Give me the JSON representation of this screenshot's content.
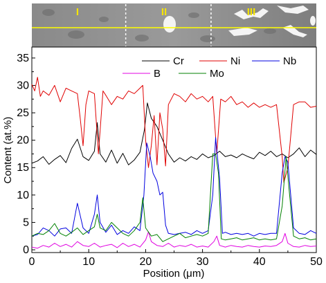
{
  "micrograph": {
    "description_free": true,
    "zone_labels": [
      "I",
      "II",
      "III"
    ],
    "zone_boundaries_um": [
      16.5,
      31.5
    ],
    "scan_line_color": "#ffff00"
  },
  "colors": {
    "Cr": "#000000",
    "Ni": "#e00000",
    "Nb": "#0000e0",
    "B": "#e000e0",
    "Mo": "#008000"
  },
  "chart_data": {
    "type": "line",
    "title": "",
    "xlabel": "Position (μm)",
    "ylabel": "Content (at.%)",
    "xlim": [
      0,
      50
    ],
    "ylim": [
      -0.5,
      37
    ],
    "xticks": [
      0,
      10,
      20,
      30,
      40,
      50
    ],
    "yticks": [
      0,
      5,
      10,
      15,
      20,
      25,
      30,
      35
    ],
    "grid": false,
    "legend": {
      "placement": "top-right",
      "entries": [
        "Cr",
        "Ni",
        "Nb",
        "B",
        "Mo"
      ]
    },
    "series": [
      {
        "name": "Cr",
        "color": "#000000",
        "points": [
          [
            0,
            15.8
          ],
          [
            1,
            16.2
          ],
          [
            2,
            17.0
          ],
          [
            3,
            15.6
          ],
          [
            4,
            16.5
          ],
          [
            5,
            17.2
          ],
          [
            6,
            15.9
          ],
          [
            7,
            18.5
          ],
          [
            8,
            20.2
          ],
          [
            9,
            17.0
          ],
          [
            10,
            16.3
          ],
          [
            11,
            18.0
          ],
          [
            11.5,
            23.2
          ],
          [
            12,
            17.5
          ],
          [
            13,
            16.0
          ],
          [
            14,
            18.2
          ],
          [
            15,
            15.8
          ],
          [
            16,
            17.6
          ],
          [
            17,
            15.5
          ],
          [
            18,
            16.4
          ],
          [
            19,
            17.8
          ],
          [
            19.8,
            22.0
          ],
          [
            20.3,
            26.8
          ],
          [
            21,
            24.0
          ],
          [
            22,
            22.5
          ],
          [
            23,
            20.0
          ],
          [
            24,
            17.5
          ],
          [
            25,
            16.0
          ],
          [
            26,
            16.8
          ],
          [
            27,
            16.2
          ],
          [
            28,
            17.0
          ],
          [
            29,
            16.5
          ],
          [
            30,
            17.5
          ],
          [
            31,
            16.8
          ],
          [
            32,
            17.2
          ],
          [
            33,
            18.0
          ],
          [
            34,
            17.0
          ],
          [
            35,
            17.3
          ],
          [
            36,
            16.8
          ],
          [
            37,
            17.5
          ],
          [
            38,
            17.0
          ],
          [
            39,
            16.6
          ],
          [
            40,
            17.8
          ],
          [
            41,
            17.2
          ],
          [
            42,
            18.0
          ],
          [
            43,
            17.0
          ],
          [
            44,
            17.5
          ],
          [
            45,
            16.8
          ],
          [
            46,
            17.5
          ],
          [
            47,
            18.6
          ],
          [
            48,
            17.0
          ],
          [
            49,
            18.2
          ],
          [
            50,
            17.4
          ]
        ]
      },
      {
        "name": "Ni",
        "color": "#e00000",
        "points": [
          [
            0,
            30.2
          ],
          [
            0.5,
            29.0
          ],
          [
            1,
            31.5
          ],
          [
            1.5,
            28.0
          ],
          [
            2,
            29.0
          ],
          [
            3,
            28.2
          ],
          [
            4,
            30.0
          ],
          [
            5,
            27.0
          ],
          [
            6,
            29.5
          ],
          [
            7,
            29.0
          ],
          [
            8,
            28.5
          ],
          [
            8.5,
            24.0
          ],
          [
            9,
            19.0
          ],
          [
            9.5,
            26.5
          ],
          [
            10,
            29.0
          ],
          [
            11,
            28.5
          ],
          [
            11.7,
            17.5
          ],
          [
            12.5,
            29.0
          ],
          [
            13,
            28.2
          ],
          [
            14,
            26.5
          ],
          [
            15,
            28.0
          ],
          [
            16,
            27.5
          ],
          [
            17,
            29.0
          ],
          [
            18,
            28.5
          ],
          [
            19,
            29.5
          ],
          [
            19.5,
            30.0
          ],
          [
            20,
            20.0
          ],
          [
            20.5,
            15.0
          ],
          [
            21,
            19.0
          ],
          [
            21.5,
            24.5
          ],
          [
            22,
            15.5
          ],
          [
            22.5,
            25.0
          ],
          [
            23,
            22.0
          ],
          [
            23.5,
            15.3
          ],
          [
            24,
            26.5
          ],
          [
            25,
            28.5
          ],
          [
            26,
            28.0
          ],
          [
            27,
            27.0
          ],
          [
            28,
            28.5
          ],
          [
            29,
            27.5
          ],
          [
            30,
            28.0
          ],
          [
            31,
            27.0
          ],
          [
            31.8,
            28.0
          ],
          [
            32.5,
            17.5
          ],
          [
            33.2,
            27.5
          ],
          [
            34,
            27.0
          ],
          [
            35,
            28.0
          ],
          [
            36,
            26.5
          ],
          [
            37,
            27.0
          ],
          [
            38,
            26.0
          ],
          [
            39,
            26.8
          ],
          [
            40,
            26.0
          ],
          [
            41,
            26.5
          ],
          [
            42,
            26.0
          ],
          [
            43,
            26.5
          ],
          [
            44,
            17.0
          ],
          [
            44.3,
            12.3
          ],
          [
            45,
            15.0
          ],
          [
            46,
            26.5
          ],
          [
            47,
            27.0
          ],
          [
            48,
            27.0
          ],
          [
            49,
            26.0
          ],
          [
            50,
            26.2
          ]
        ]
      },
      {
        "name": "Nb",
        "color": "#0000e0",
        "points": [
          [
            0,
            2.5
          ],
          [
            1,
            2.8
          ],
          [
            2,
            4.0
          ],
          [
            3,
            3.5
          ],
          [
            4,
            2.5
          ],
          [
            5,
            3.8
          ],
          [
            6,
            4.0
          ],
          [
            7,
            3.0
          ],
          [
            8,
            8.5
          ],
          [
            9,
            4.0
          ],
          [
            10,
            3.0
          ],
          [
            11,
            6.5
          ],
          [
            11.5,
            10.0
          ],
          [
            12,
            5.0
          ],
          [
            13,
            3.2
          ],
          [
            14,
            4.5
          ],
          [
            15,
            2.8
          ],
          [
            16,
            3.5
          ],
          [
            17,
            3.0
          ],
          [
            18,
            4.2
          ],
          [
            19,
            3.5
          ],
          [
            19.7,
            10.0
          ],
          [
            20.2,
            19.5
          ],
          [
            20.8,
            17.0
          ],
          [
            21.3,
            14.0
          ],
          [
            22,
            12.5
          ],
          [
            22.5,
            10.0
          ],
          [
            23,
            10.5
          ],
          [
            23.5,
            4.5
          ],
          [
            24,
            3.0
          ],
          [
            25,
            2.8
          ],
          [
            26,
            3.0
          ],
          [
            27,
            3.2
          ],
          [
            28,
            2.8
          ],
          [
            29,
            3.5
          ],
          [
            30,
            3.0
          ],
          [
            31,
            3.5
          ],
          [
            31.8,
            10.0
          ],
          [
            32.3,
            20.5
          ],
          [
            33,
            13.0
          ],
          [
            33.5,
            3.0
          ],
          [
            34,
            3.2
          ],
          [
            35,
            2.8
          ],
          [
            36,
            3.0
          ],
          [
            37,
            2.8
          ],
          [
            38,
            3.0
          ],
          [
            39,
            2.5
          ],
          [
            40,
            3.0
          ],
          [
            41,
            2.8
          ],
          [
            42,
            3.0
          ],
          [
            43,
            3.0
          ],
          [
            44,
            14.0
          ],
          [
            44.5,
            17.0
          ],
          [
            45,
            16.0
          ],
          [
            46,
            4.0
          ],
          [
            47,
            3.0
          ],
          [
            48,
            2.8
          ],
          [
            49,
            3.5
          ],
          [
            50,
            3.0
          ]
        ]
      },
      {
        "name": "B",
        "color": "#e000e0",
        "points": [
          [
            0,
            0.5
          ],
          [
            1,
            0.3
          ],
          [
            2,
            0.8
          ],
          [
            3,
            0.5
          ],
          [
            4,
            1.2
          ],
          [
            5,
            0.6
          ],
          [
            6,
            1.0
          ],
          [
            7,
            0.5
          ],
          [
            8,
            1.5
          ],
          [
            9,
            0.8
          ],
          [
            10,
            0.6
          ],
          [
            11,
            1.2
          ],
          [
            12,
            0.5
          ],
          [
            13,
            0.8
          ],
          [
            14,
            1.0
          ],
          [
            15,
            0.4
          ],
          [
            16,
            1.2
          ],
          [
            17,
            0.6
          ],
          [
            18,
            1.0
          ],
          [
            19,
            0.5
          ],
          [
            20,
            1.8
          ],
          [
            20.5,
            3.3
          ],
          [
            21,
            1.5
          ],
          [
            22,
            0.8
          ],
          [
            23,
            0.6
          ],
          [
            24,
            1.2
          ],
          [
            25,
            0.5
          ],
          [
            26,
            0.8
          ],
          [
            27,
            0.6
          ],
          [
            28,
            1.0
          ],
          [
            29,
            0.5
          ],
          [
            30,
            0.7
          ],
          [
            31,
            0.5
          ],
          [
            32,
            1.5
          ],
          [
            32.5,
            2.5
          ],
          [
            33,
            0.8
          ],
          [
            34,
            0.5
          ],
          [
            35,
            0.8
          ],
          [
            36,
            0.6
          ],
          [
            37,
            0.5
          ],
          [
            38,
            0.8
          ],
          [
            39,
            0.6
          ],
          [
            40,
            0.5
          ],
          [
            41,
            0.7
          ],
          [
            42,
            0.6
          ],
          [
            43,
            0.8
          ],
          [
            44,
            1.5
          ],
          [
            44.5,
            3.0
          ],
          [
            45,
            1.2
          ],
          [
            46,
            0.6
          ],
          [
            47,
            0.5
          ],
          [
            48,
            0.8
          ],
          [
            49,
            0.6
          ],
          [
            50,
            0.7
          ]
        ]
      },
      {
        "name": "Mo",
        "color": "#008000",
        "points": [
          [
            0,
            2.5
          ],
          [
            1,
            3.0
          ],
          [
            2,
            2.8
          ],
          [
            3,
            3.5
          ],
          [
            4,
            4.8
          ],
          [
            5,
            3.0
          ],
          [
            6,
            2.5
          ],
          [
            7,
            3.2
          ],
          [
            8,
            4.0
          ],
          [
            9,
            2.8
          ],
          [
            10,
            3.5
          ],
          [
            11,
            4.2
          ],
          [
            11.5,
            6.5
          ],
          [
            12,
            4.0
          ],
          [
            13,
            3.5
          ],
          [
            14,
            5.0
          ],
          [
            15,
            4.0
          ],
          [
            16,
            3.0
          ],
          [
            17,
            2.5
          ],
          [
            18,
            3.5
          ],
          [
            19,
            5.0
          ],
          [
            19.5,
            9.5
          ],
          [
            20,
            4.0
          ],
          [
            21,
            2.5
          ],
          [
            22,
            2.8
          ],
          [
            23,
            1.5
          ],
          [
            24,
            2.0
          ],
          [
            25,
            2.5
          ],
          [
            26,
            3.0
          ],
          [
            27,
            2.2
          ],
          [
            28,
            2.5
          ],
          [
            29,
            2.8
          ],
          [
            30,
            2.5
          ],
          [
            31,
            3.0
          ],
          [
            31.8,
            17.5
          ],
          [
            32.3,
            17.5
          ],
          [
            32.8,
            14.0
          ],
          [
            33.3,
            2.0
          ],
          [
            34,
            1.8
          ],
          [
            35,
            2.0
          ],
          [
            36,
            2.2
          ],
          [
            37,
            1.8
          ],
          [
            38,
            2.0
          ],
          [
            39,
            2.2
          ],
          [
            40,
            1.8
          ],
          [
            41,
            2.0
          ],
          [
            42,
            1.8
          ],
          [
            43,
            2.0
          ],
          [
            44,
            8.0
          ],
          [
            44.7,
            17.0
          ],
          [
            45.3,
            10.0
          ],
          [
            46,
            2.5
          ],
          [
            47,
            2.0
          ],
          [
            48,
            2.2
          ],
          [
            49,
            1.8
          ],
          [
            50,
            2.0
          ]
        ]
      }
    ]
  }
}
